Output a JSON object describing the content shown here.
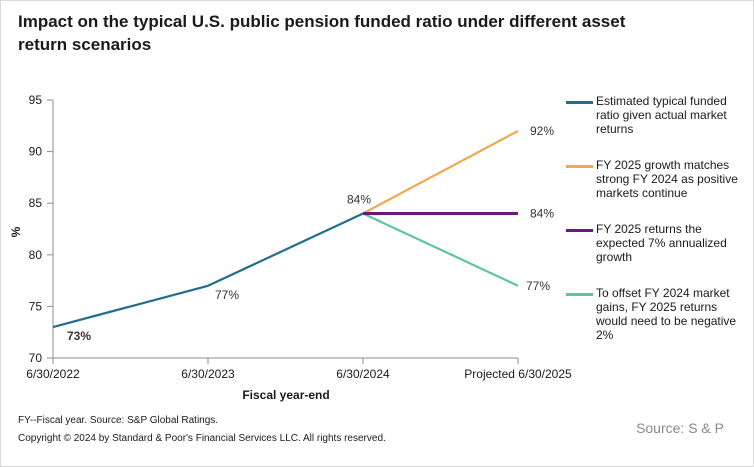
{
  "title": "Impact on the typical U.S. public pension funded ratio under different asset return scenarios",
  "footer": {
    "note": "FY--Fiscal year. Source: S&P Global Ratings.",
    "copyright": "Copyright © 2024 by Standard & Poor's Financial Services LLC. All rights reserved.",
    "source": "Source: S & P"
  },
  "chart_data": {
    "type": "line",
    "title": "Impact on the typical U.S. public pension funded ratio under different asset return scenarios",
    "xlabel": "Fiscal year-end",
    "ylabel": "%",
    "categories": [
      "6/30/2022",
      "6/30/2023",
      "6/30/2024",
      "Projected 6/30/2025"
    ],
    "ylim": [
      70,
      95
    ],
    "yticks": [
      70,
      75,
      80,
      85,
      90,
      95
    ],
    "grid": false,
    "legend_position": "right",
    "series": [
      {
        "name": "Estimated typical funded ratio given actual market returns",
        "color": "#1f6e8c",
        "values": [
          73,
          77,
          84,
          null
        ],
        "labels": [
          "73%",
          "77%",
          "84%",
          null
        ]
      },
      {
        "name": "FY 2025 growth matches strong FY 2024 as positive markets continue",
        "color": "#f0a94f",
        "values": [
          null,
          null,
          84,
          92
        ],
        "labels": [
          null,
          null,
          null,
          "92%"
        ]
      },
      {
        "name": "FY 2025 returns the expected 7% annualized growth",
        "color": "#6a1b7a",
        "values": [
          null,
          null,
          84,
          84
        ],
        "labels": [
          null,
          null,
          null,
          "84%"
        ]
      },
      {
        "name": "To offset FY 2024 market gains, FY 2025 returns would need to be negative 2%",
        "color": "#5cc49f",
        "values": [
          null,
          null,
          84,
          77
        ],
        "labels": [
          null,
          null,
          null,
          "77%"
        ]
      }
    ]
  }
}
